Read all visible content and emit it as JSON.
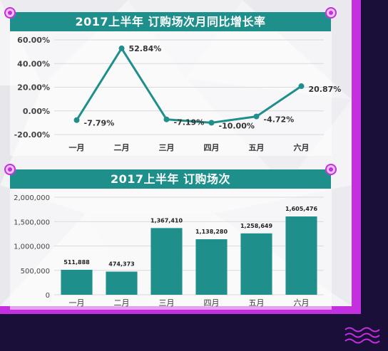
{
  "chart_data": [
    {
      "type": "line",
      "title": "2017上半年  订购场次月同比增长率",
      "categories": [
        "一月",
        "二月",
        "三月",
        "四月",
        "五月",
        "六月"
      ],
      "values": [
        -7.79,
        52.84,
        -7.19,
        -10.0,
        -4.72,
        20.87
      ],
      "value_labels": [
        "-7.79%",
        "52.84%",
        "-7.19%",
        "-10.00%",
        "-4.72%",
        "20.87%"
      ],
      "ylim": [
        -20,
        60
      ],
      "yticks": [
        "60.00%",
        "40.00%",
        "20.00%",
        "0.00%",
        "-20.00%"
      ],
      "ytick_values": [
        60,
        40,
        20,
        0,
        -20
      ],
      "grid": true,
      "color": "#1f8f8b"
    },
    {
      "type": "bar",
      "title": "2017上半年  订购场次",
      "categories": [
        "一月",
        "二月",
        "三月",
        "四月",
        "五月",
        "六月"
      ],
      "values": [
        511888,
        474373,
        1367410,
        1138280,
        1258649,
        1605476
      ],
      "value_labels": [
        "511,888",
        "474,373",
        "1,367,410",
        "1,138,280",
        "1,258,649",
        "1,605,476"
      ],
      "ylim": [
        0,
        2000000
      ],
      "yticks": [
        "2,000,000",
        "1,500,000",
        "1,000,000",
        "500,000",
        "0"
      ],
      "ytick_values": [
        2000000,
        1500000,
        1000000,
        500000,
        0
      ],
      "grid": true,
      "color": "#1f8f8b"
    }
  ],
  "colors": {
    "frame": "#c42fe0",
    "accent": "#1f8f8b",
    "background": "#1a0f38"
  },
  "decorations": {
    "corner_pins": "magenta-pin-icon",
    "waves": "wave-lines-icon"
  }
}
